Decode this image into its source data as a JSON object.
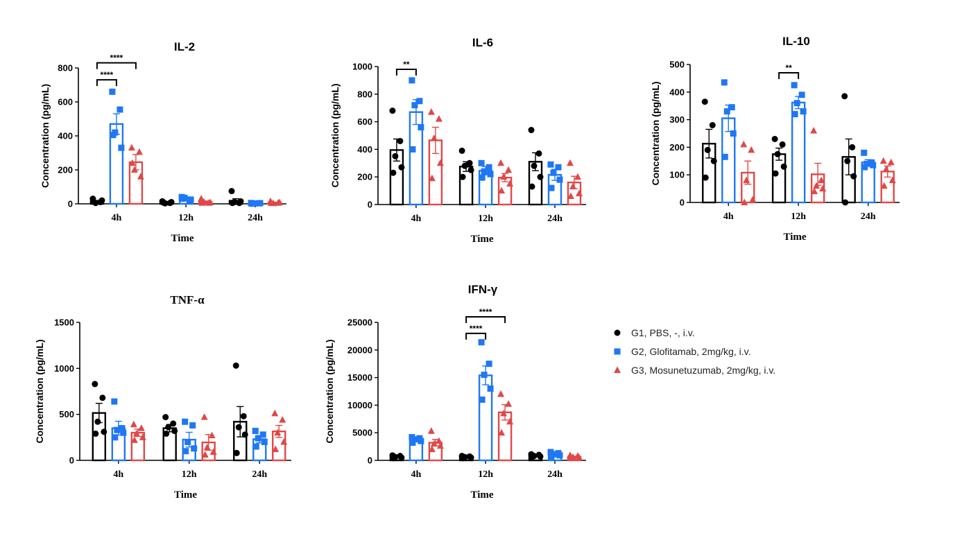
{
  "colors": {
    "G1": "#000000",
    "G2": "#1f77f4",
    "G3": "#e04848"
  },
  "legend": [
    {
      "group": "G1",
      "label": "G1, PBS, -, i.v.",
      "marker": "circle"
    },
    {
      "group": "G2",
      "label": "G2, Glofitamab, 2mg/kg, i.v.",
      "marker": "square"
    },
    {
      "group": "G3",
      "label": "G3, Mosunetuzumab, 2mg/kg, i.v.",
      "marker": "triangle"
    }
  ],
  "chart_data": [
    {
      "type": "bar",
      "title": "IL-2",
      "title_font": "sans",
      "xlabel": "Time",
      "ylabel": "Concentration (pg/mL)",
      "categories": [
        "4h",
        "12h",
        "24h"
      ],
      "ylim": [
        0,
        800
      ],
      "yticks": [
        0,
        200,
        400,
        600,
        800
      ],
      "series": [
        {
          "group": "G1",
          "means": [
            15,
            8,
            18
          ],
          "sem": [
            5,
            3,
            12
          ],
          "points": [
            [
              30,
              10,
              5,
              20,
              12
            ],
            [
              15,
              5,
              3,
              10,
              8
            ],
            [
              75,
              5,
              10,
              15,
              5
            ]
          ]
        },
        {
          "group": "G2",
          "means": [
            470,
            28,
            3
          ],
          "sem": [
            60,
            8,
            2
          ],
          "points": [
            [
              660,
              555,
              420,
              330,
              405
            ],
            [
              40,
              20,
              35,
              25,
              30
            ],
            [
              5,
              3,
              2,
              4,
              1
            ]
          ]
        },
        {
          "group": "G3",
          "means": [
            245,
            12,
            7
          ],
          "sem": [
            45,
            5,
            3
          ],
          "points": [
            [
              330,
              305,
              200,
              160,
              240
            ],
            [
              30,
              5,
              10,
              8,
              5
            ],
            [
              15,
              5,
              3,
              8,
              4
            ]
          ]
        }
      ],
      "significance": [
        {
          "from": [
            0,
            0
          ],
          "to": [
            0,
            1
          ],
          "label": "****",
          "y": 730
        },
        {
          "from": [
            0,
            0
          ],
          "to": [
            0,
            2
          ],
          "label": "****",
          "y": 830
        }
      ]
    },
    {
      "type": "bar",
      "title": "IL-6",
      "title_font": "sans",
      "xlabel": "Time",
      "ylabel": "Concentration (pg/mL)",
      "categories": [
        "4h",
        "12h",
        "24h"
      ],
      "ylim": [
        0,
        1000
      ],
      "yticks": [
        0,
        200,
        400,
        600,
        800,
        1000
      ],
      "series": [
        {
          "group": "G1",
          "means": [
            395,
            275,
            310
          ],
          "sem": [
            80,
            35,
            65
          ],
          "points": [
            [
              680,
              460,
              350,
              270,
              230
            ],
            [
              390,
              300,
              280,
              250,
              200
            ],
            [
              540,
              370,
              280,
              200,
              130
            ]
          ]
        },
        {
          "group": "G2",
          "means": [
            670,
            245,
            215
          ],
          "sem": [
            90,
            30,
            40
          ],
          "points": [
            [
              900,
              750,
              720,
              560,
              400
            ],
            [
              300,
              270,
              240,
              220,
              195
            ],
            [
              290,
              270,
              230,
              180,
              120
            ]
          ]
        },
        {
          "group": "G3",
          "means": [
            465,
            195,
            160
          ],
          "sem": [
            95,
            30,
            45
          ],
          "points": [
            [
              670,
              620,
              480,
              300,
              190
            ],
            [
              300,
              250,
              200,
              150,
              100
            ],
            [
              300,
              200,
              130,
              80,
              60
            ]
          ]
        }
      ],
      "significance": [
        {
          "from": [
            0,
            0
          ],
          "to": [
            0,
            1
          ],
          "label": "**",
          "y": 980
        }
      ]
    },
    {
      "type": "bar",
      "title": "IL-10",
      "title_font": "sans",
      "xlabel": "Time",
      "ylabel": "Concentration (pg/mL)",
      "categories": [
        "4h",
        "12h",
        "24h"
      ],
      "ylim": [
        0,
        500
      ],
      "yticks": [
        0,
        100,
        200,
        300,
        400,
        500
      ],
      "series": [
        {
          "group": "G1",
          "means": [
            213,
            175,
            165
          ],
          "sem": [
            52,
            22,
            65
          ],
          "points": [
            [
              365,
              280,
              190,
              150,
              90
            ],
            [
              230,
              210,
              175,
              130,
              105
            ],
            [
              385,
              200,
              150,
              95,
              0
            ]
          ]
        },
        {
          "group": "G2",
          "means": [
            305,
            362,
            145
          ],
          "sem": [
            48,
            22,
            10
          ],
          "points": [
            [
              435,
              345,
              330,
              250,
              165
            ],
            [
              425,
              390,
              360,
              330,
              320
            ],
            [
              180,
              145,
              140,
              135,
              128
            ]
          ]
        },
        {
          "group": "G3",
          "means": [
            108,
            102,
            112
          ],
          "sem": [
            42,
            40,
            20
          ],
          "points": [
            [
              210,
              190,
              80,
              10,
              0
            ],
            [
              260,
              80,
              60,
              50,
              40
            ],
            [
              150,
              145,
              120,
              80,
              60
            ]
          ]
        }
      ],
      "significance": [
        {
          "from": [
            1,
            0
          ],
          "to": [
            1,
            1
          ],
          "label": "**",
          "y": 470
        }
      ]
    },
    {
      "type": "bar",
      "title": "TNF-α",
      "title_font": "serif",
      "xlabel": "Time",
      "ylabel": "Concentration (pg/mL)",
      "categories": [
        "4h",
        "12h",
        "24h"
      ],
      "ylim": [
        0,
        1500
      ],
      "yticks": [
        0,
        500,
        1000,
        1500
      ],
      "series": [
        {
          "group": "G1",
          "means": [
            515,
            350,
            420
          ],
          "sem": [
            105,
            40,
            165
          ],
          "points": [
            [
              830,
              680,
              420,
              310,
              290
            ],
            [
              470,
              400,
              360,
              320,
              290
            ],
            [
              1030,
              480,
              360,
              280,
              80
            ]
          ]
        },
        {
          "group": "G2",
          "means": [
            350,
            225,
            230
          ],
          "sem": [
            75,
            80,
            40
          ],
          "points": [
            [
              640,
              350,
              330,
              300,
              250
            ],
            [
              420,
              380,
              200,
              130,
              100
            ],
            [
              320,
              280,
              240,
              200,
              150
            ]
          ]
        },
        {
          "group": "G3",
          "means": [
            300,
            195,
            315
          ],
          "sem": [
            40,
            85,
            65
          ],
          "points": [
            [
              390,
              350,
              290,
              250,
              220
            ],
            [
              470,
              270,
              140,
              90,
              60
            ],
            [
              510,
              440,
              300,
              200,
              120
            ]
          ]
        }
      ],
      "significance": []
    },
    {
      "type": "bar",
      "title": "IFN-γ",
      "title_font": "sans",
      "xlabel": "Time",
      "ylabel": "Concentration (pg/mL)",
      "categories": [
        "4h",
        "12h",
        "24h"
      ],
      "ylim": [
        0,
        25000
      ],
      "yticks": [
        0,
        5000,
        10000,
        15000,
        20000,
        25000
      ],
      "series": [
        {
          "group": "G1",
          "means": [
            650,
            600,
            850
          ],
          "sem": [
            150,
            100,
            150
          ],
          "points": [
            [
              900,
              800,
              600,
              500,
              400
            ],
            [
              800,
              700,
              600,
              500,
              400
            ],
            [
              1100,
              1000,
              800,
              700,
              500
            ]
          ]
        },
        {
          "group": "G2",
          "means": [
            3700,
            15400,
            1100
          ],
          "sem": [
            300,
            1700,
            200
          ],
          "points": [
            [
              4200,
              4000,
              3800,
              3500,
              3200
            ],
            [
              21400,
              17500,
              15500,
              13000,
              11000
            ],
            [
              1500,
              1300,
              1100,
              900,
              700
            ]
          ]
        },
        {
          "group": "G3",
          "means": [
            3200,
            8700,
            650
          ],
          "sem": [
            600,
            1400,
            100
          ],
          "points": [
            [
              5300,
              3500,
              3000,
              2600,
              2000
            ],
            [
              12000,
              10200,
              8500,
              7000,
              5000
            ],
            [
              900,
              800,
              600,
              500,
              400
            ]
          ]
        }
      ],
      "significance": [
        {
          "from": [
            1,
            0
          ],
          "to": [
            1,
            1
          ],
          "label": "****",
          "y": 23000
        },
        {
          "from": [
            1,
            0
          ],
          "to": [
            1,
            2
          ],
          "label": "****",
          "y": 26000
        }
      ]
    }
  ]
}
